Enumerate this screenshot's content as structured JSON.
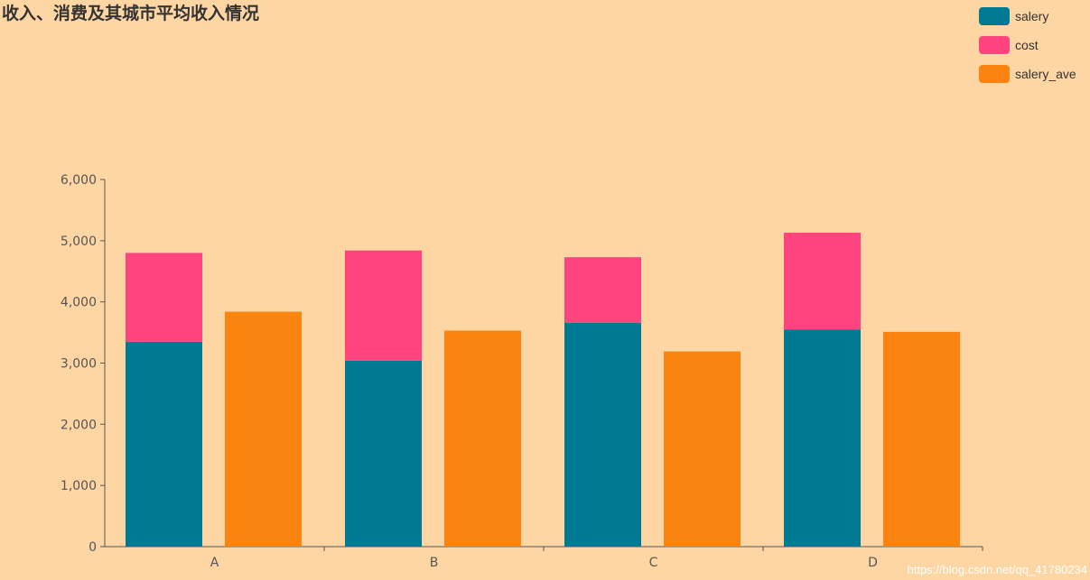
{
  "chart_data": {
    "type": "bar",
    "title": "收入、消费及其城市平均收入情况",
    "categories": [
      "A",
      "B",
      "C",
      "D"
    ],
    "series": [
      {
        "name": "salery",
        "stack": "total",
        "color": "#007993",
        "values": [
          3350,
          3040,
          3660,
          3550
        ]
      },
      {
        "name": "cost",
        "stack": "total",
        "color": "#ff4480",
        "values": [
          1450,
          1800,
          1070,
          1580
        ]
      },
      {
        "name": "salery_ave",
        "color": "#fb8310",
        "values": [
          3840,
          3530,
          3190,
          3510
        ]
      }
    ],
    "ylim": [
      0,
      6000
    ],
    "yticks": [
      "0",
      "1,000",
      "2,000",
      "3,000",
      "4,000",
      "5,000",
      "6,000"
    ],
    "grid": false,
    "legend": "top-right"
  },
  "watermark": "https://blog.csdn.net/qq_41780234"
}
